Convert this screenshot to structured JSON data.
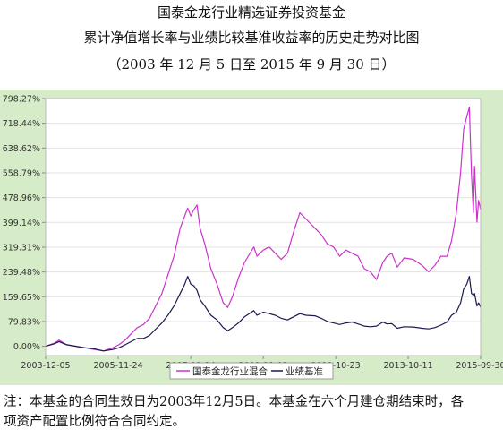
{
  "header": {
    "title": "国泰金龙行业精选证券投资基金",
    "subtitle": "累计净值增长率与业绩比较基准收益率的历史走势对比图",
    "period": "（2003 年 12 月 5 日至 2015 年 9 月 30 日）"
  },
  "note": {
    "line1": "注：本基金的合同生效日为2003年12月5日。本基金在六个月建仓期结束时，各",
    "line2": "项资产配置比例符合合同约定。"
  },
  "colors": {
    "frame": "#d6ecc8",
    "plot_bg": "#ffffff",
    "fund": "#cc33cc",
    "benchmark": "#1a1a4d",
    "grid": "#e3e3e3"
  },
  "chart_data": {
    "type": "line",
    "title": "",
    "xlabel": "",
    "ylabel": "",
    "x_ticks": [
      "2003-12-05",
      "2005-11-24",
      "2007-11-14",
      "2009-11-03",
      "2011-10-23",
      "2013-10-11",
      "2015-09-30"
    ],
    "y_ticks": [
      "0.00%",
      "79.83%",
      "159.65%",
      "239.48%",
      "319.31%",
      "399.14%",
      "478.96%",
      "558.79%",
      "638.62%",
      "718.44%",
      "798.27%"
    ],
    "ylim": [
      -30,
      798.27
    ],
    "xlim": [
      "2003-12-05",
      "2015-09-30"
    ],
    "grid": true,
    "legend_position": "bottom-center",
    "series": [
      {
        "name": "国泰金龙行业混合",
        "points": [
          [
            "2003-12-05",
            0
          ],
          [
            "2004-03-01",
            10
          ],
          [
            "2004-04-15",
            20
          ],
          [
            "2004-07-01",
            5
          ],
          [
            "2004-10-01",
            0
          ],
          [
            "2005-01-01",
            -5
          ],
          [
            "2005-04-01",
            -10
          ],
          [
            "2005-07-01",
            -15
          ],
          [
            "2005-10-01",
            -5
          ],
          [
            "2005-12-01",
            5
          ],
          [
            "2006-02-01",
            20
          ],
          [
            "2006-04-01",
            40
          ],
          [
            "2006-06-01",
            60
          ],
          [
            "2006-08-01",
            70
          ],
          [
            "2006-10-01",
            90
          ],
          [
            "2006-12-01",
            130
          ],
          [
            "2007-02-01",
            170
          ],
          [
            "2007-04-01",
            230
          ],
          [
            "2007-06-01",
            290
          ],
          [
            "2007-08-01",
            380
          ],
          [
            "2007-09-15",
            420
          ],
          [
            "2007-10-15",
            445
          ],
          [
            "2007-11-15",
            420
          ],
          [
            "2007-12-15",
            440
          ],
          [
            "2008-01-15",
            455
          ],
          [
            "2008-02-15",
            380
          ],
          [
            "2008-04-01",
            330
          ],
          [
            "2008-06-01",
            250
          ],
          [
            "2008-08-01",
            200
          ],
          [
            "2008-10-01",
            140
          ],
          [
            "2008-11-15",
            125
          ],
          [
            "2009-01-01",
            160
          ],
          [
            "2009-03-01",
            220
          ],
          [
            "2009-05-01",
            270
          ],
          [
            "2009-08-01",
            320
          ],
          [
            "2009-09-01",
            290
          ],
          [
            "2009-11-03",
            310
          ],
          [
            "2010-01-01",
            320
          ],
          [
            "2010-03-01",
            300
          ],
          [
            "2010-05-01",
            280
          ],
          [
            "2010-07-01",
            300
          ],
          [
            "2010-09-01",
            370
          ],
          [
            "2010-11-01",
            430
          ],
          [
            "2011-01-01",
            410
          ],
          [
            "2011-04-01",
            380
          ],
          [
            "2011-06-01",
            360
          ],
          [
            "2011-08-01",
            330
          ],
          [
            "2011-10-01",
            320
          ],
          [
            "2011-12-01",
            290
          ],
          [
            "2012-02-01",
            310
          ],
          [
            "2012-04-01",
            300
          ],
          [
            "2012-06-01",
            290
          ],
          [
            "2012-08-01",
            250
          ],
          [
            "2012-10-01",
            240
          ],
          [
            "2012-12-01",
            215
          ],
          [
            "2013-02-01",
            270
          ],
          [
            "2013-03-15",
            290
          ],
          [
            "2013-05-01",
            300
          ],
          [
            "2013-06-25",
            255
          ],
          [
            "2013-09-01",
            285
          ],
          [
            "2013-12-01",
            280
          ],
          [
            "2014-03-01",
            260
          ],
          [
            "2014-05-01",
            240
          ],
          [
            "2014-07-01",
            260
          ],
          [
            "2014-09-01",
            290
          ],
          [
            "2014-11-01",
            290
          ],
          [
            "2014-12-15",
            340
          ],
          [
            "2015-02-01",
            430
          ],
          [
            "2015-03-15",
            560
          ],
          [
            "2015-04-15",
            700
          ],
          [
            "2015-05-15",
            740
          ],
          [
            "2015-06-10",
            770
          ],
          [
            "2015-07-01",
            550
          ],
          [
            "2015-07-20",
            430
          ],
          [
            "2015-08-01",
            580
          ],
          [
            "2015-08-25",
            400
          ],
          [
            "2015-09-10",
            470
          ],
          [
            "2015-09-30",
            440
          ]
        ]
      },
      {
        "name": "业绩基准",
        "points": [
          [
            "2003-12-05",
            0
          ],
          [
            "2004-03-01",
            8
          ],
          [
            "2004-04-15",
            15
          ],
          [
            "2004-07-01",
            5
          ],
          [
            "2004-10-01",
            0
          ],
          [
            "2005-01-01",
            -5
          ],
          [
            "2005-04-01",
            -8
          ],
          [
            "2005-07-01",
            -15
          ],
          [
            "2005-10-01",
            -10
          ],
          [
            "2005-12-01",
            -5
          ],
          [
            "2006-02-01",
            5
          ],
          [
            "2006-04-01",
            15
          ],
          [
            "2006-06-01",
            25
          ],
          [
            "2006-08-01",
            25
          ],
          [
            "2006-10-01",
            35
          ],
          [
            "2006-12-01",
            55
          ],
          [
            "2007-02-01",
            75
          ],
          [
            "2007-04-01",
            100
          ],
          [
            "2007-06-01",
            130
          ],
          [
            "2007-08-01",
            170
          ],
          [
            "2007-09-15",
            200
          ],
          [
            "2007-10-15",
            225
          ],
          [
            "2007-11-15",
            200
          ],
          [
            "2007-12-15",
            195
          ],
          [
            "2008-01-15",
            180
          ],
          [
            "2008-02-15",
            150
          ],
          [
            "2008-04-01",
            130
          ],
          [
            "2008-06-01",
            100
          ],
          [
            "2008-08-01",
            85
          ],
          [
            "2008-10-01",
            60
          ],
          [
            "2008-11-15",
            50
          ],
          [
            "2009-01-01",
            60
          ],
          [
            "2009-03-01",
            75
          ],
          [
            "2009-05-01",
            95
          ],
          [
            "2009-08-01",
            115
          ],
          [
            "2009-09-01",
            100
          ],
          [
            "2009-11-03",
            110
          ],
          [
            "2010-01-01",
            105
          ],
          [
            "2010-03-01",
            100
          ],
          [
            "2010-05-01",
            90
          ],
          [
            "2010-07-01",
            85
          ],
          [
            "2010-09-01",
            95
          ],
          [
            "2010-11-01",
            105
          ],
          [
            "2011-01-01",
            100
          ],
          [
            "2011-04-01",
            98
          ],
          [
            "2011-06-01",
            90
          ],
          [
            "2011-08-01",
            80
          ],
          [
            "2011-10-01",
            75
          ],
          [
            "2011-12-01",
            70
          ],
          [
            "2012-02-01",
            75
          ],
          [
            "2012-04-01",
            78
          ],
          [
            "2012-06-01",
            72
          ],
          [
            "2012-08-01",
            65
          ],
          [
            "2012-10-01",
            63
          ],
          [
            "2012-12-01",
            65
          ],
          [
            "2013-02-01",
            78
          ],
          [
            "2013-03-15",
            72
          ],
          [
            "2013-05-01",
            73
          ],
          [
            "2013-06-25",
            58
          ],
          [
            "2013-09-01",
            63
          ],
          [
            "2013-12-01",
            62
          ],
          [
            "2014-03-01",
            58
          ],
          [
            "2014-05-01",
            56
          ],
          [
            "2014-07-01",
            60
          ],
          [
            "2014-09-01",
            68
          ],
          [
            "2014-11-01",
            78
          ],
          [
            "2014-12-15",
            100
          ],
          [
            "2015-02-01",
            110
          ],
          [
            "2015-03-15",
            140
          ],
          [
            "2015-04-15",
            185
          ],
          [
            "2015-05-15",
            200
          ],
          [
            "2015-06-10",
            225
          ],
          [
            "2015-07-01",
            170
          ],
          [
            "2015-07-20",
            165
          ],
          [
            "2015-08-01",
            170
          ],
          [
            "2015-08-25",
            130
          ],
          [
            "2015-09-10",
            140
          ],
          [
            "2015-09-30",
            125
          ]
        ]
      }
    ]
  }
}
